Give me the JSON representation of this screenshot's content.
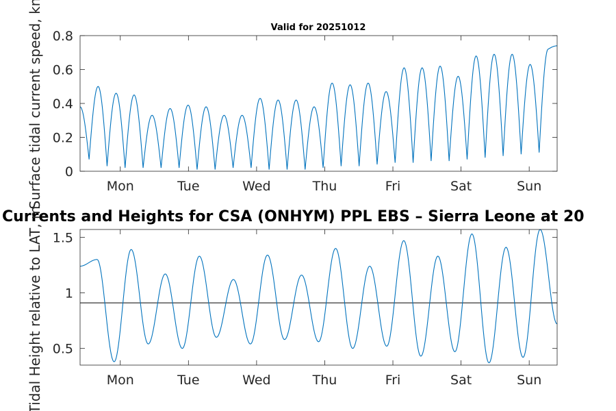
{
  "chart_data": [
    {
      "type": "line",
      "title": "Valid for 20251012",
      "ylabel": "Surface tidal current speed, kn",
      "ylim": [
        0,
        0.8
      ],
      "yticks": [
        0,
        0.2,
        0.4,
        0.6,
        0.8
      ],
      "ytick_labels": [
        "0",
        "0.2",
        "0.4",
        "0.6",
        "0.8"
      ],
      "xlim_days": [
        -0.59,
        6.41
      ],
      "xtick_labels": [
        "Mon",
        "Tue",
        "Wed",
        "Thu",
        "Fri",
        "Sat",
        "Sun"
      ],
      "color": "#0072BD",
      "series": [
        {
          "peaks": [
            0.5,
            0.46,
            0.45,
            0.33,
            0.37,
            0.39,
            0.38,
            0.33,
            0.33,
            0.43,
            0.42,
            0.42,
            0.38,
            0.52,
            0.51,
            0.52,
            0.47,
            0.61,
            0.61,
            0.62,
            0.56,
            0.68,
            0.69,
            0.69,
            0.63,
            0.72,
            0.74
          ],
          "minima": [
            0.07,
            0.03,
            0.02,
            0.02,
            0.02,
            0.02,
            0.01,
            0.01,
            0.02,
            0.02,
            0.01,
            0.01,
            0.01,
            0.02,
            0.03,
            0.03,
            0.04,
            0.05,
            0.05,
            0.06,
            0.06,
            0.07,
            0.08,
            0.09,
            0.1,
            0.11
          ],
          "start_value": 0.38
        }
      ]
    },
    {
      "type": "line",
      "title": "Currents and Heights for CSA (ONHYM) PPL EBS  – Sierra Leone at 20",
      "ylabel": "Tidal Height relative to LAT, m",
      "ylim": [
        0.35,
        1.57
      ],
      "yticks": [
        0.5,
        1,
        1.5
      ],
      "ytick_labels": [
        "0.5",
        "1",
        "1.5"
      ],
      "xlim_days": [
        -0.59,
        6.41
      ],
      "xtick_labels": [
        "Mon",
        "Tue",
        "Wed",
        "Thu",
        "Fri",
        "Sat",
        "Sun"
      ],
      "reference_line": 0.91,
      "color": "#0072BD",
      "series": [
        {
          "extrema": [
            1.24,
            1.3,
            0.38,
            1.39,
            0.54,
            1.17,
            0.5,
            1.33,
            0.6,
            1.12,
            0.54,
            1.34,
            0.58,
            1.16,
            0.56,
            1.4,
            0.5,
            1.24,
            0.52,
            1.47,
            0.43,
            1.33,
            0.47,
            1.53,
            0.37,
            1.41,
            0.42,
            1.57,
            0.72
          ]
        }
      ]
    }
  ]
}
